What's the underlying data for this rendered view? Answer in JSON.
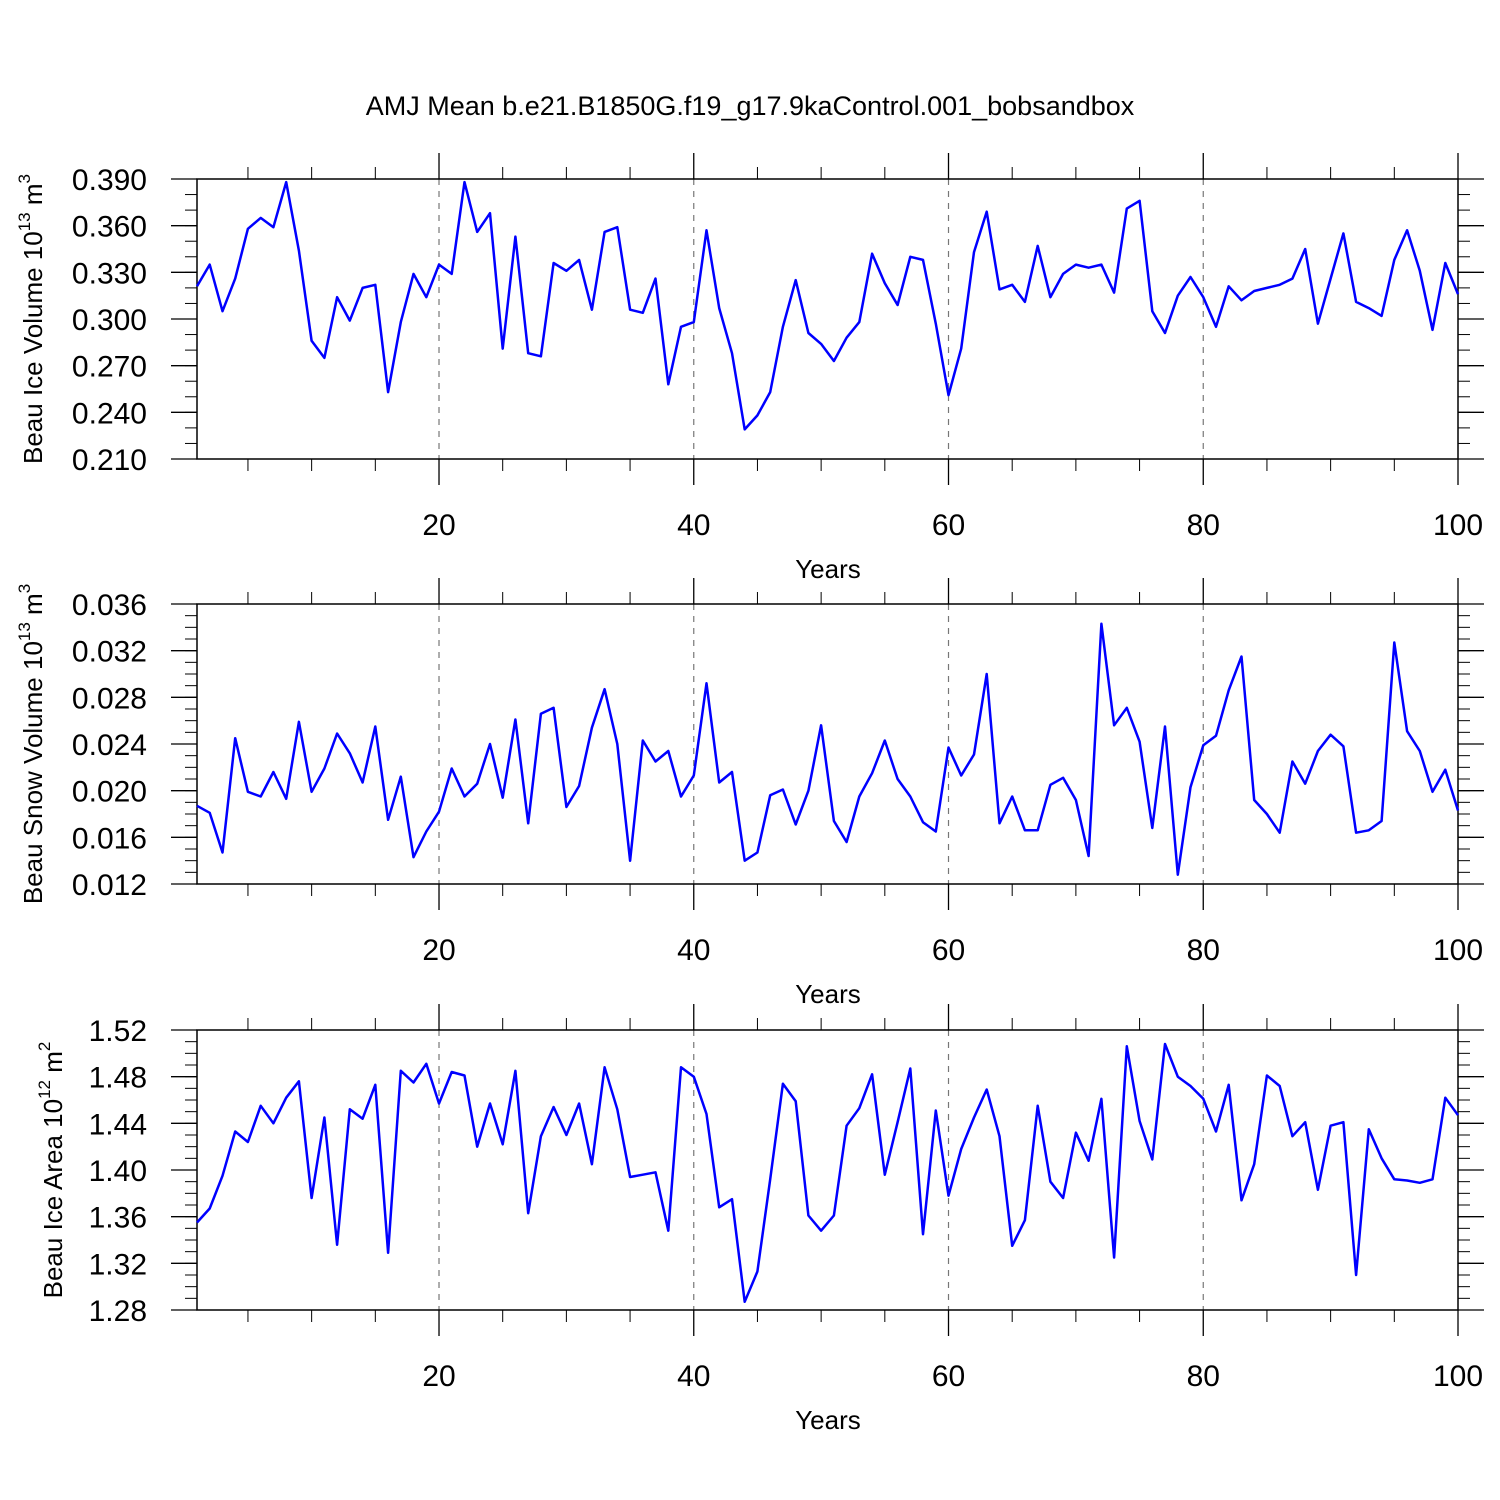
{
  "chart_data": {
    "title": "AMJ Mean b.e21.B1850G.f19_g17.9kaControl.001_bobsandbox",
    "line_color": "#0000ff",
    "panels": [
      {
        "type": "line",
        "ylabel": {
          "text": "Beau Ice Volume 10",
          "exp1": "13",
          "unit": " m",
          "exp2": "3"
        },
        "xlabel": "Years",
        "xlim": [
          1,
          100
        ],
        "ylim": [
          0.21,
          0.39
        ],
        "xticks": [
          20,
          40,
          60,
          80,
          100
        ],
        "xtick_labels": [
          "20",
          "40",
          "60",
          "80",
          "100"
        ],
        "yticks": [
          0.21,
          0.24,
          0.27,
          0.3,
          0.33,
          0.36,
          0.39
        ],
        "ytick_labels": [
          "0.210",
          "0.240",
          "0.270",
          "0.300",
          "0.330",
          "0.360",
          "0.390"
        ],
        "yminor_step": 0.01,
        "grid": "dashed vertical at 20,40,60,80",
        "values": [
          0.321,
          0.335,
          0.305,
          0.326,
          0.358,
          0.365,
          0.359,
          0.388,
          0.344,
          0.286,
          0.275,
          0.314,
          0.299,
          0.32,
          0.322,
          0.253,
          0.298,
          0.329,
          0.314,
          0.335,
          0.329,
          0.388,
          0.356,
          0.368,
          0.281,
          0.353,
          0.278,
          0.276,
          0.336,
          0.331,
          0.338,
          0.306,
          0.356,
          0.359,
          0.306,
          0.304,
          0.326,
          0.258,
          0.295,
          0.298,
          0.357,
          0.307,
          0.278,
          0.229,
          0.238,
          0.253,
          0.295,
          0.325,
          0.291,
          0.284,
          0.273,
          0.288,
          0.298,
          0.342,
          0.323,
          0.309,
          0.34,
          0.338,
          0.297,
          0.251,
          0.281,
          0.343,
          0.369,
          0.319,
          0.322,
          0.311,
          0.347,
          0.314,
          0.329,
          0.335,
          0.333,
          0.335,
          0.317,
          0.371,
          0.376,
          0.305,
          0.291,
          0.315,
          0.327,
          0.314,
          0.295,
          0.321,
          0.312,
          0.318,
          0.32,
          0.322,
          0.326,
          0.345,
          0.297,
          0.326,
          0.355,
          0.311,
          0.307,
          0.302,
          0.338,
          0.357,
          0.331,
          0.293,
          0.336,
          0.316
        ]
      },
      {
        "type": "line",
        "ylabel": {
          "text": "Beau Snow Volume 10",
          "exp1": "13",
          "unit": " m",
          "exp2": "3"
        },
        "xlabel": "Years",
        "xlim": [
          1,
          100
        ],
        "ylim": [
          0.012,
          0.036
        ],
        "xticks": [
          20,
          40,
          60,
          80,
          100
        ],
        "xtick_labels": [
          "20",
          "40",
          "60",
          "80",
          "100"
        ],
        "yticks": [
          0.012,
          0.016,
          0.02,
          0.024,
          0.028,
          0.032,
          0.036
        ],
        "ytick_labels": [
          "0.012",
          "0.016",
          "0.020",
          "0.024",
          "0.028",
          "0.032",
          "0.036"
        ],
        "yminor_step": 0.001,
        "grid": "dashed vertical at 20,40,60,80",
        "values": [
          0.0187,
          0.0181,
          0.0147,
          0.0245,
          0.0199,
          0.0195,
          0.0216,
          0.0193,
          0.0259,
          0.0199,
          0.0219,
          0.0249,
          0.0232,
          0.0207,
          0.0255,
          0.0175,
          0.0212,
          0.0143,
          0.0165,
          0.0182,
          0.0219,
          0.0195,
          0.0206,
          0.024,
          0.0194,
          0.0261,
          0.0172,
          0.0266,
          0.0271,
          0.0186,
          0.0204,
          0.0254,
          0.0287,
          0.024,
          0.014,
          0.0243,
          0.0225,
          0.0234,
          0.0195,
          0.0213,
          0.0292,
          0.0207,
          0.0216,
          0.014,
          0.0147,
          0.0196,
          0.0201,
          0.0171,
          0.02,
          0.0256,
          0.0174,
          0.0156,
          0.0195,
          0.0215,
          0.0243,
          0.021,
          0.0195,
          0.0173,
          0.0165,
          0.0237,
          0.0213,
          0.0231,
          0.03,
          0.0172,
          0.0195,
          0.0166,
          0.0166,
          0.0205,
          0.0211,
          0.0192,
          0.0144,
          0.0343,
          0.0256,
          0.0271,
          0.0242,
          0.0168,
          0.0255,
          0.0128,
          0.0203,
          0.0239,
          0.0247,
          0.0286,
          0.0315,
          0.0192,
          0.018,
          0.0164,
          0.0225,
          0.0206,
          0.0234,
          0.0248,
          0.0238,
          0.0164,
          0.0166,
          0.0174,
          0.0327,
          0.0251,
          0.0234,
          0.0199,
          0.0218,
          0.0183
        ]
      },
      {
        "type": "line",
        "ylabel": {
          "text": "Beau Ice Area 10",
          "exp1": "12",
          "unit": " m",
          "exp2": "2"
        },
        "xlabel": "Years",
        "xlim": [
          1,
          100
        ],
        "ylim": [
          1.28,
          1.52
        ],
        "xticks": [
          20,
          40,
          60,
          80,
          100
        ],
        "xtick_labels": [
          "20",
          "40",
          "60",
          "80",
          "100"
        ],
        "yticks": [
          1.28,
          1.32,
          1.36,
          1.4,
          1.44,
          1.48,
          1.52
        ],
        "ytick_labels": [
          "1.28",
          "1.32",
          "1.36",
          "1.40",
          "1.44",
          "1.48",
          "1.52"
        ],
        "yminor_step": 0.01,
        "grid": "dashed vertical at 20,40,60,80",
        "values": [
          1.355,
          1.367,
          1.395,
          1.433,
          1.424,
          1.455,
          1.44,
          1.462,
          1.476,
          1.376,
          1.445,
          1.336,
          1.452,
          1.444,
          1.473,
          1.329,
          1.485,
          1.475,
          1.491,
          1.457,
          1.484,
          1.481,
          1.42,
          1.457,
          1.422,
          1.485,
          1.363,
          1.429,
          1.454,
          1.43,
          1.457,
          1.405,
          1.488,
          1.452,
          1.394,
          1.396,
          1.398,
          1.348,
          1.488,
          1.48,
          1.448,
          1.368,
          1.375,
          1.287,
          1.313,
          1.392,
          1.474,
          1.459,
          1.361,
          1.348,
          1.361,
          1.438,
          1.453,
          1.482,
          1.396,
          1.441,
          1.487,
          1.345,
          1.451,
          1.378,
          1.418,
          1.445,
          1.469,
          1.429,
          1.335,
          1.357,
          1.455,
          1.39,
          1.376,
          1.432,
          1.408,
          1.461,
          1.325,
          1.506,
          1.442,
          1.409,
          1.508,
          1.48,
          1.472,
          1.461,
          1.433,
          1.473,
          1.374,
          1.405,
          1.481,
          1.472,
          1.429,
          1.441,
          1.383,
          1.438,
          1.441,
          1.31,
          1.435,
          1.41,
          1.392,
          1.391,
          1.389,
          1.392,
          1.462,
          1.447
        ]
      }
    ]
  }
}
